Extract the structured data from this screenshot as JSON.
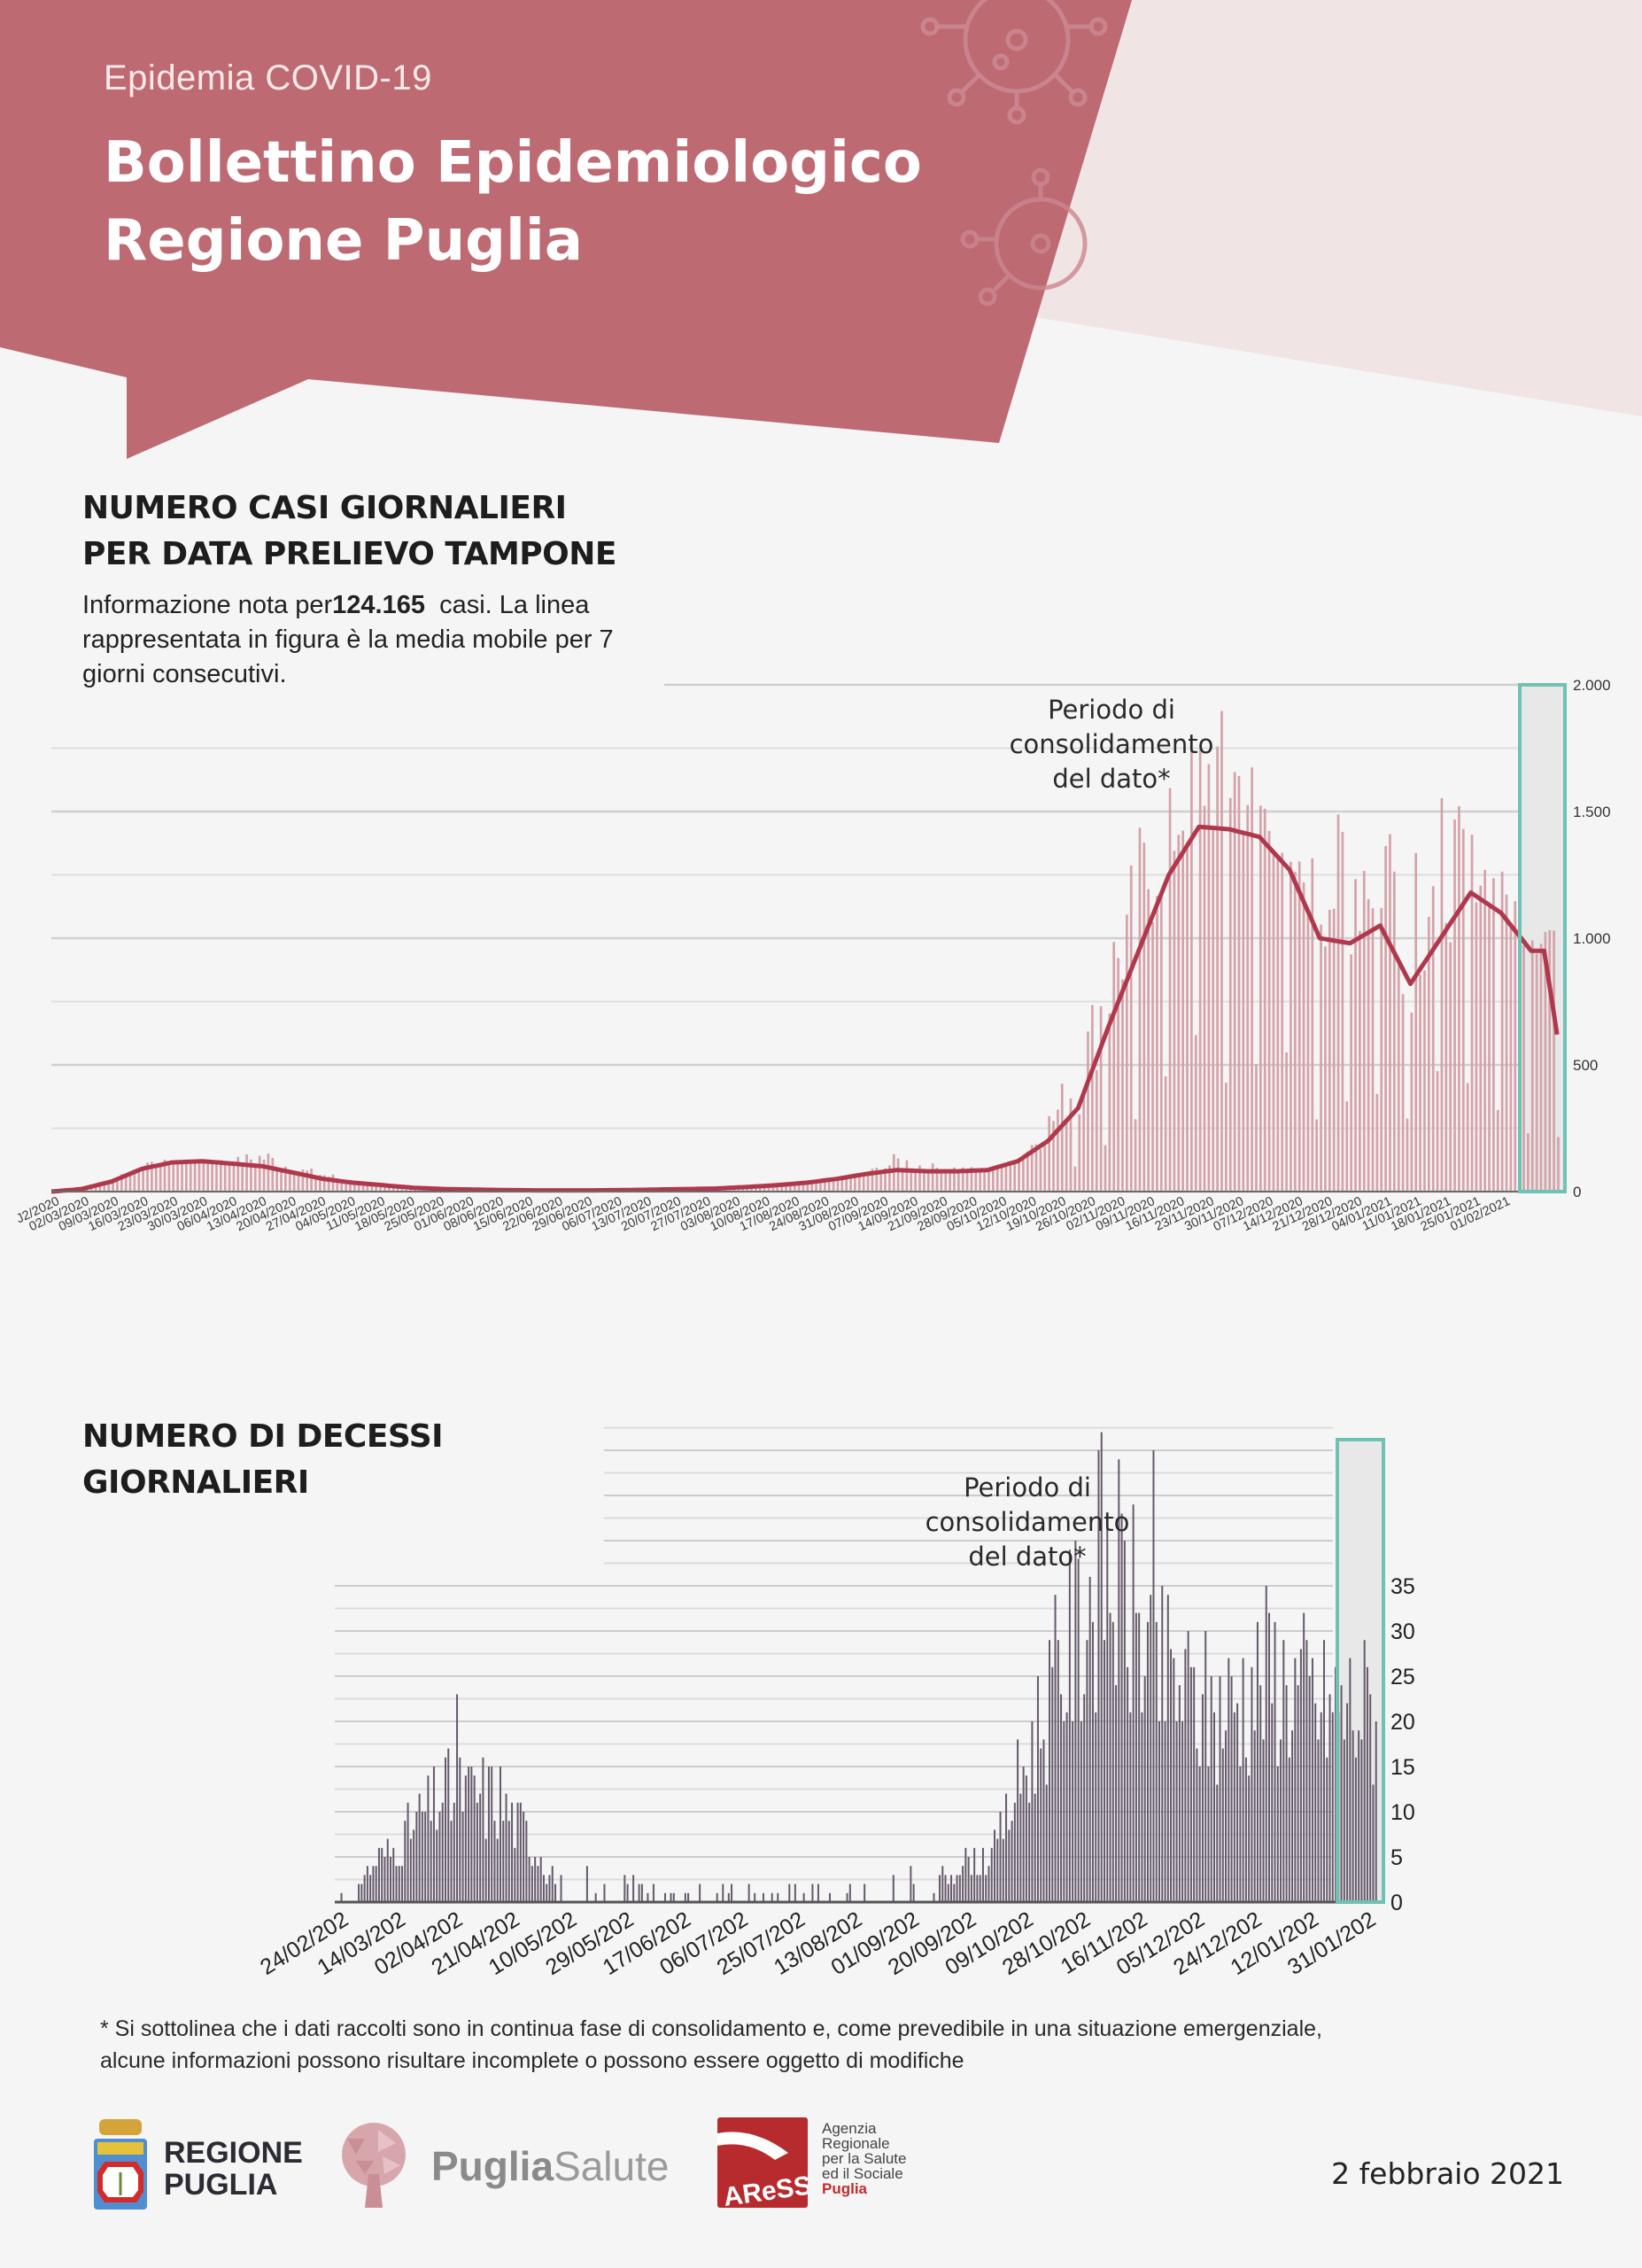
{
  "header": {
    "subtitle": "Epidemia COVID-19",
    "title_line1": "Bollettino Epidemiologico",
    "title_line2": "Regione Puglia",
    "colors": {
      "banner": "#bd6a72",
      "banner_light": "#f1e4e4"
    }
  },
  "cases_section": {
    "title_line1": "NUMERO CASI GIORNALIERI",
    "title_line2": "PER DATA PRELIEVO TAMPONE",
    "desc_prefix": "Informazione nota per",
    "desc_count": "124.165",
    "desc_suffix": "  casi. La linea",
    "desc_line2": "rappresentata in figura è la media mobile per 7",
    "desc_line3": "giorni consecutivi.",
    "annotation_line1": "Periodo di",
    "annotation_line2": "consolidamento",
    "annotation_line3": "del dato*"
  },
  "deaths_section": {
    "title_line1": "NUMERO DI DECESSI",
    "title_line2": "GIORNALIERI",
    "annotation_line1": "Periodo di",
    "annotation_line2": "consolidamento",
    "annotation_line3": "del dato*"
  },
  "footnote": {
    "line1": "* Si sottolinea che i dati raccolti sono in continua fase di consolidamento e, come prevedibile in una situazione emergenziale,",
    "line2": "alcune informazioni possono risultare incomplete o possono essere oggetto di modifiche"
  },
  "footer": {
    "regione_line1": "REGIONE",
    "regione_line2": "PUGLIA",
    "pugliasalute_bold": "Puglia",
    "pugliasalute_light": "Salute",
    "aress_mark": "AReSS",
    "aress_lines": [
      "Agenzia",
      "Regionale",
      "per la Salute",
      "ed il Sociale"
    ],
    "aress_region": "Puglia",
    "date": "2 febbraio 2021"
  },
  "chart_data": [
    {
      "type": "bar",
      "title": "Numero casi giornalieri per data prelievo tampone",
      "bar_color": "#d4a2a8",
      "line_color": "#b0384c",
      "highlight_color": "#6ec2b4",
      "ylim": [
        0,
        2000
      ],
      "yticks": [
        0,
        500,
        1000,
        1500,
        2000
      ],
      "ytick_labels": [
        "0",
        "500",
        "1.000",
        "1.500",
        "2.000"
      ],
      "y_axis_side": "right",
      "grid": true,
      "xtick_labels": [
        "24/02/2020",
        "02/03/2020",
        "09/03/2020",
        "16/03/2020",
        "23/03/2020",
        "30/03/2020",
        "06/04/2020",
        "13/04/2020",
        "20/04/2020",
        "27/04/2020",
        "04/05/2020",
        "11/05/2020",
        "18/05/2020",
        "25/05/2020",
        "01/06/2020",
        "08/06/2020",
        "15/06/2020",
        "22/06/2020",
        "29/06/2020",
        "06/07/2020",
        "13/07/2020",
        "20/07/2020",
        "27/07/2020",
        "03/08/2020",
        "10/08/2020",
        "17/08/2020",
        "24/08/2020",
        "31/08/2020",
        "07/09/2020",
        "14/09/2020",
        "21/09/2020",
        "28/09/2020",
        "05/10/2020",
        "12/10/2020",
        "19/10/2020",
        "26/10/2020",
        "02/11/2020",
        "09/11/2020",
        "16/11/2020",
        "23/11/2020",
        "30/11/2020",
        "07/12/2020",
        "14/12/2020",
        "21/12/2020",
        "28/12/2020",
        "04/01/2021",
        "11/01/2021",
        "18/01/2021",
        "25/01/2021",
        "01/02/2021"
      ],
      "xtick_first_visible": "J2/2020",
      "weekly_bar_max": [
        0,
        10,
        60,
        110,
        130,
        120,
        130,
        170,
        100,
        80,
        40,
        30,
        20,
        15,
        10,
        8,
        6,
        5,
        6,
        8,
        10,
        12,
        15,
        20,
        25,
        35,
        55,
        80,
        150,
        110,
        100,
        90,
        130,
        320,
        560,
        1000,
        1400,
        1560,
        1840,
        1860,
        1630,
        1300,
        1320,
        1520,
        1580,
        1600,
        1560,
        1400,
        1250,
        1100
      ],
      "moving_average_weekly": [
        0,
        10,
        40,
        90,
        115,
        120,
        110,
        100,
        75,
        50,
        35,
        25,
        15,
        10,
        8,
        6,
        5,
        5,
        5,
        6,
        8,
        10,
        12,
        18,
        25,
        35,
        50,
        70,
        85,
        80,
        80,
        85,
        120,
        200,
        330,
        650,
        950,
        1250,
        1440,
        1430,
        1400,
        1270,
        1000,
        980,
        1050,
        820,
        1000,
        1180,
        1100,
        950
      ],
      "moving_average_last": 620,
      "highlight": {
        "label": "Periodo di consolidamento del dato*",
        "from": "26/01/2021",
        "to": "01/02/2021"
      }
    },
    {
      "type": "bar",
      "title": "Numero di decessi giornalieri",
      "bar_color": "#65596b",
      "highlight_color": "#6ec2b4",
      "ylim": [
        0,
        35
      ],
      "yticks": [
        0,
        5,
        10,
        15,
        20,
        25,
        30,
        35
      ],
      "ytick_labels": [
        "0",
        "5",
        "10",
        "15",
        "20",
        "25",
        "30",
        "35"
      ],
      "y_axis_side": "right",
      "grid": true,
      "xtick_labels": [
        "24/02/202",
        "14/03/202",
        "02/04/202",
        "21/04/202",
        "10/05/202",
        "29/05/202",
        "17/06/202",
        "06/07/202",
        "25/07/202",
        "13/08/202",
        "01/09/202",
        "20/09/202",
        "09/10/202",
        "28/10/202",
        "16/11/202",
        "05/12/202",
        "24/12/202",
        "12/01/202",
        "31/01/202"
      ],
      "values_by_19day_period": [
        1,
        6,
        13,
        12,
        3,
        2,
        1,
        1,
        1,
        1,
        2,
        3,
        6,
        24,
        40,
        27,
        22,
        27,
        23
      ],
      "peak_value": 50,
      "highlight": {
        "label": "Periodo di consolidamento del dato*",
        "from": "22/01/2021",
        "to": "01/02/2021"
      }
    }
  ]
}
